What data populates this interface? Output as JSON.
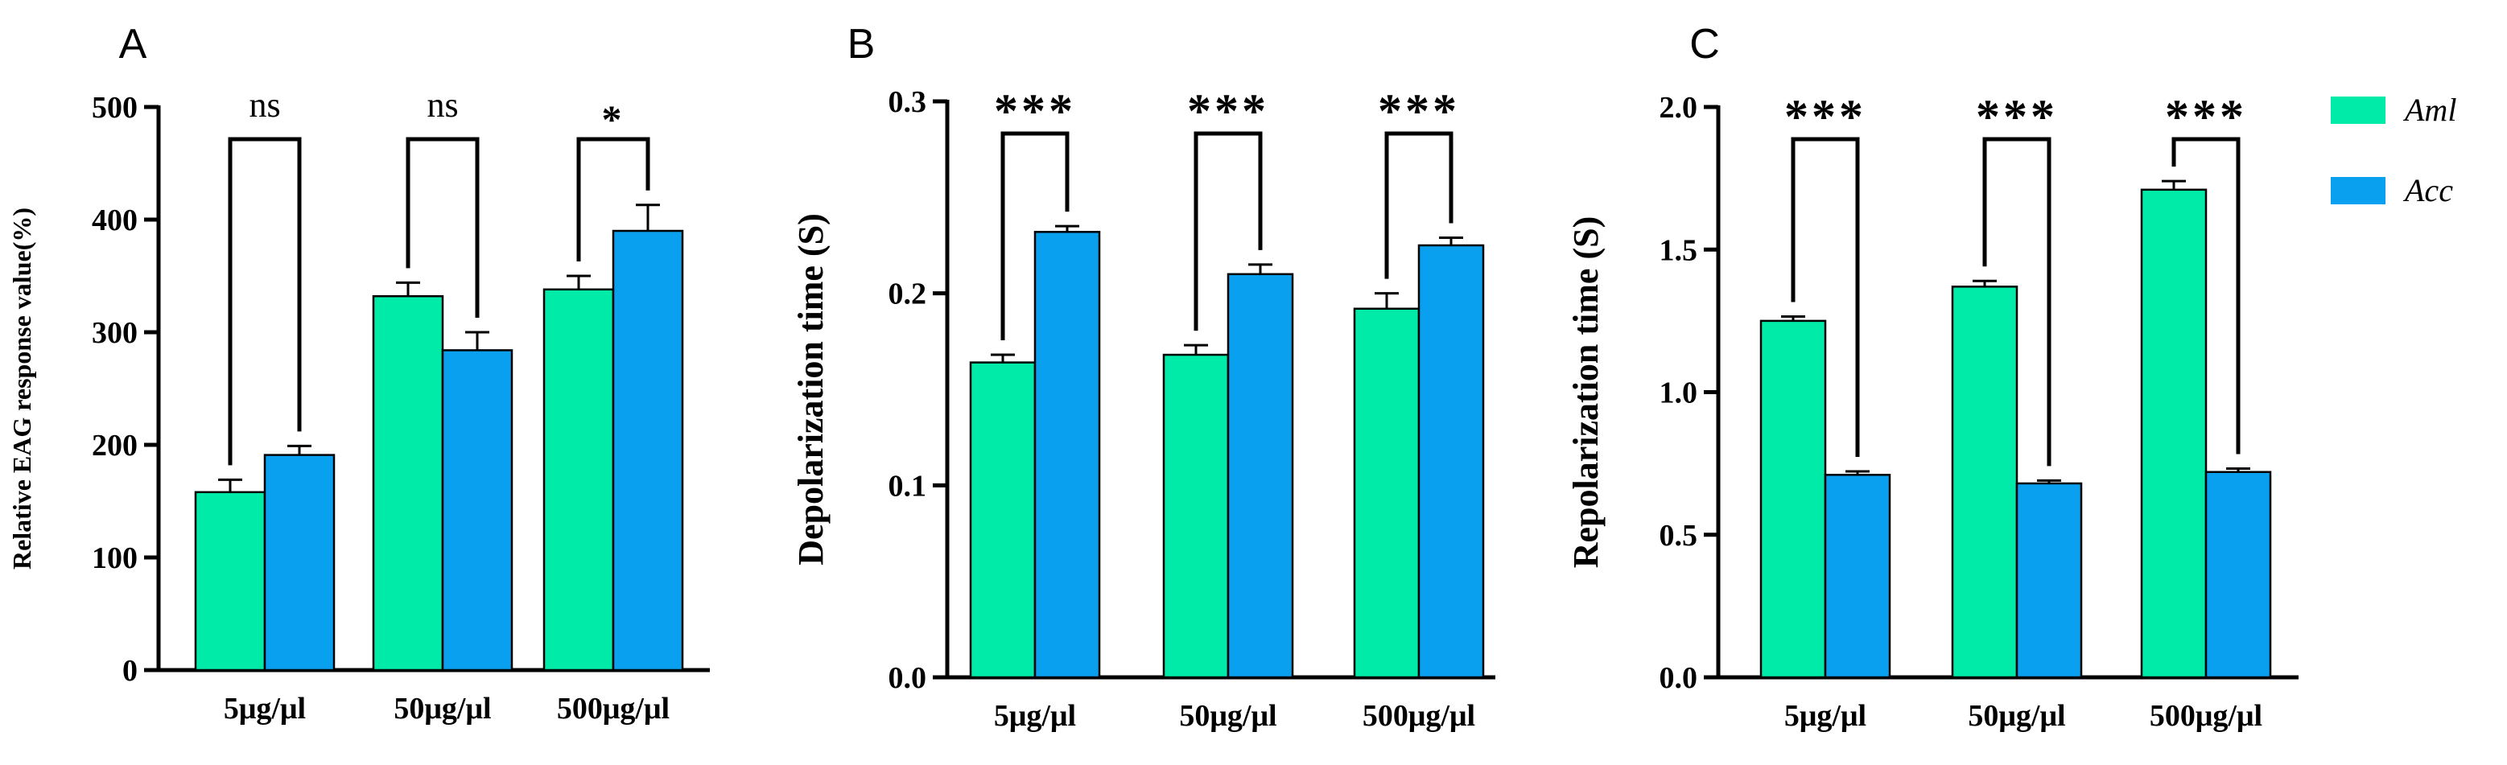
{
  "colors": {
    "aml": "#00EBA8",
    "acc": "#0AA0F0",
    "axis": "#000000"
  },
  "legend": [
    {
      "label": "Aml",
      "color_key": "aml"
    },
    {
      "label": "Acc",
      "color_key": "acc"
    }
  ],
  "chart_data": [
    {
      "type": "bar",
      "panel": "A",
      "ylabel": "Relative EAG response value(%)",
      "ylim": [
        0,
        500
      ],
      "yticks": [
        0,
        100,
        200,
        300,
        400,
        500
      ],
      "ytick_labels": [
        "0",
        "100",
        "200",
        "300",
        "400",
        "500"
      ],
      "categories": [
        "5μg/μl",
        "50μg/μl",
        "500μg/μl"
      ],
      "series": [
        {
          "name": "Aml",
          "values": [
            158,
            332,
            338
          ],
          "errors": [
            11,
            12,
            12
          ]
        },
        {
          "name": "Acc",
          "values": [
            191,
            284,
            390
          ],
          "errors": [
            8,
            16,
            23
          ]
        }
      ],
      "significance": [
        "ns",
        "ns",
        "*"
      ]
    },
    {
      "type": "bar",
      "panel": "B",
      "ylabel": "Depolarization time (S)",
      "ylim": [
        0,
        0.3
      ],
      "yticks": [
        0,
        0.1,
        0.2,
        0.3
      ],
      "ytick_labels": [
        "0.0",
        "0.1",
        "0.2",
        "0.3"
      ],
      "categories": [
        "5μg/μl",
        "50μg/μl",
        "500μg/μl"
      ],
      "series": [
        {
          "name": "Aml",
          "values": [
            0.164,
            0.168,
            0.192
          ],
          "errors": [
            0.004,
            0.005,
            0.008
          ]
        },
        {
          "name": "Acc",
          "values": [
            0.232,
            0.21,
            0.225
          ],
          "errors": [
            0.003,
            0.005,
            0.004
          ]
        }
      ],
      "significance": [
        "***",
        "***",
        "***"
      ]
    },
    {
      "type": "bar",
      "panel": "C",
      "ylabel": "Repolarization time (S)",
      "ylim": [
        0,
        2.0
      ],
      "yticks": [
        0,
        0.5,
        1.0,
        1.5,
        2.0
      ],
      "ytick_labels": [
        "0.0",
        "0.5",
        "1.0",
        "1.5",
        "2.0"
      ],
      "categories": [
        "5μg/μl",
        "50μg/μl",
        "500μg/μl"
      ],
      "series": [
        {
          "name": "Aml",
          "values": [
            1.25,
            1.37,
            1.71
          ],
          "errors": [
            0.015,
            0.02,
            0.03
          ]
        },
        {
          "name": "Acc",
          "values": [
            0.71,
            0.68,
            0.72
          ],
          "errors": [
            0.012,
            0.01,
            0.012
          ]
        }
      ],
      "significance": [
        "***",
        "***",
        "***"
      ]
    }
  ]
}
